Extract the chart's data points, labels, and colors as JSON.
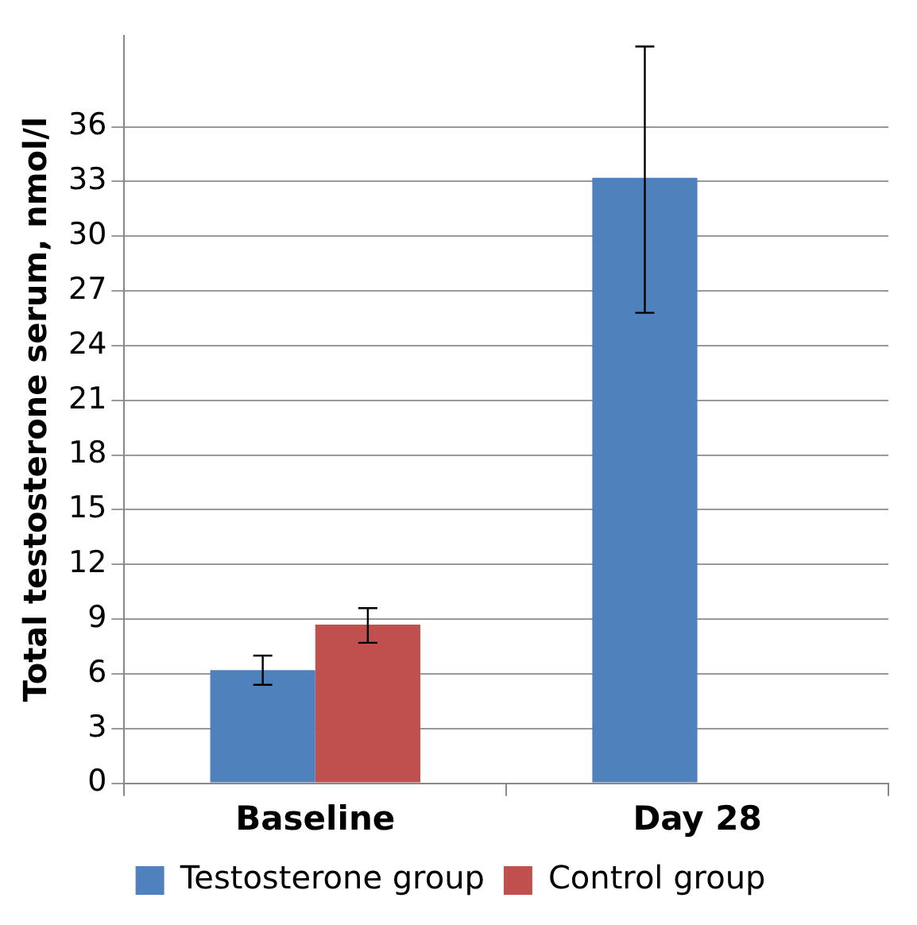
{
  "chart_data": {
    "type": "bar",
    "ylabel": "Total testosterone serum, nmol/l",
    "categories": [
      "Baseline",
      "Day 28"
    ],
    "series": [
      {
        "name": "Testosterone group",
        "color": "#4f81bd",
        "values": [
          6.2,
          33.2
        ],
        "errors": [
          [
            5.4,
            7.0
          ],
          [
            25.8,
            40.4
          ]
        ]
      },
      {
        "name": "Control group",
        "color": "#c0504d",
        "values": [
          8.7,
          null
        ],
        "errors": [
          [
            7.7,
            9.6
          ],
          null
        ]
      }
    ],
    "ylim": [
      0,
      41
    ],
    "yticks": [
      0,
      3,
      6,
      9,
      12,
      15,
      18,
      21,
      24,
      27,
      30,
      33,
      36
    ],
    "grid": "y",
    "legend": "bottom"
  }
}
